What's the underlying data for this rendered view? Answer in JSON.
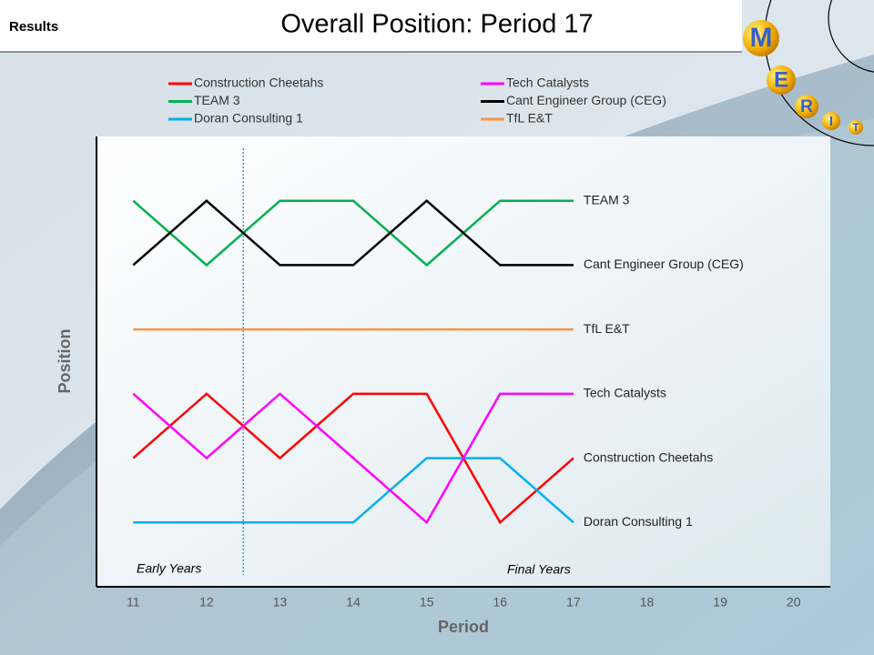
{
  "header": "Results",
  "logo": [
    "M",
    "E",
    "R",
    "I",
    "T"
  ],
  "chart_data": {
    "type": "line",
    "title": "Overall Position: Period 17",
    "x_label": "Period",
    "y_label": "Position",
    "x": [
      11,
      12,
      13,
      14,
      15,
      16,
      17
    ],
    "xlim": [
      10.5,
      20.5
    ],
    "xticks": [
      11,
      12,
      13,
      14,
      15,
      16,
      17,
      18,
      19,
      20
    ],
    "ylim": [
      7,
      0
    ],
    "divider_x": 12.5,
    "annotations": [
      "Early Years",
      "Final Years"
    ],
    "series": [
      {
        "name": "Construction Cheetahs",
        "color": "#ff0000",
        "values": [
          5,
          4,
          5,
          4,
          4,
          6,
          5
        ]
      },
      {
        "name": "TEAM 3",
        "color": "#00b050",
        "values": [
          1,
          2,
          1,
          1,
          2,
          1,
          1
        ]
      },
      {
        "name": "Doran Consulting 1",
        "color": "#00b0f0",
        "values": [
          6,
          6,
          6,
          6,
          5,
          5,
          6
        ]
      },
      {
        "name": "Tech Catalysts",
        "color": "#ff00ff",
        "values": [
          4,
          5,
          4,
          5,
          6,
          4,
          4
        ]
      },
      {
        "name": "Cant Engineer Group (CEG)",
        "color": "#000000",
        "values": [
          2,
          1,
          2,
          2,
          1,
          2,
          2
        ]
      },
      {
        "name": "TfL E&T",
        "color": "#f79646",
        "values": [
          3,
          3,
          3,
          3,
          3,
          3,
          3
        ]
      }
    ]
  }
}
